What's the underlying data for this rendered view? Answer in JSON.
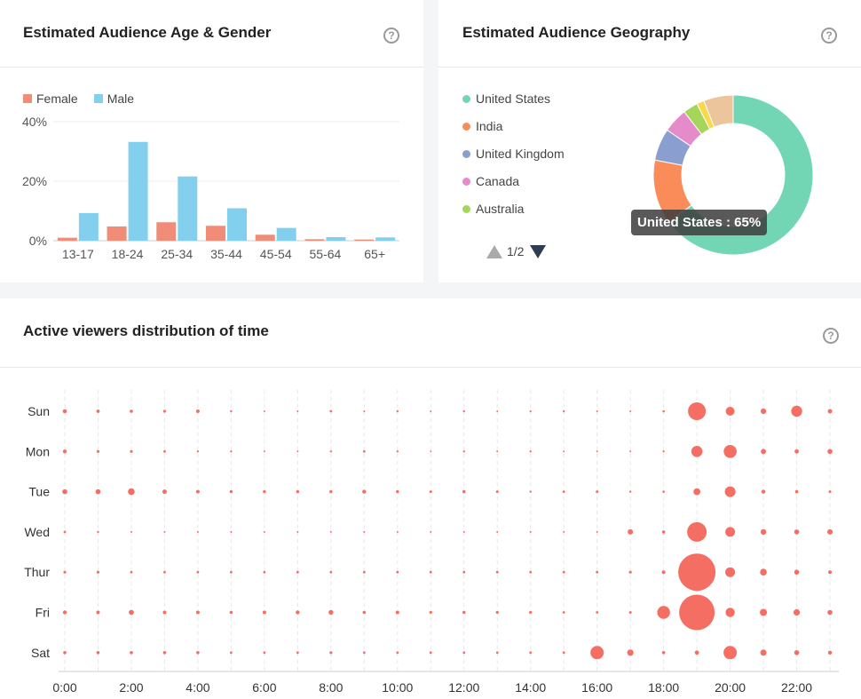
{
  "age_card": {
    "title": "Estimated Audience Age & Gender"
  },
  "geo_card": {
    "title": "Estimated Audience Geography",
    "pager": "1/2",
    "tooltip": "United States : 65%"
  },
  "time_card": {
    "title": "Active viewers distribution of time"
  },
  "icons": {
    "help": "question-circle-icon",
    "pager_prev": "triangle-up-icon",
    "pager_next": "triangle-down-icon"
  },
  "chart_data": [
    {
      "type": "bar",
      "categories": [
        "13-17",
        "18-24",
        "25-34",
        "35-44",
        "45-54",
        "55-64",
        "65+"
      ],
      "series": [
        {
          "name": "Female",
          "color": "#f08c78",
          "values": [
            1.0,
            4.8,
            6.2,
            5.0,
            2.0,
            0.5,
            0.4
          ]
        },
        {
          "name": "Male",
          "color": "#82d0ee",
          "values": [
            9.3,
            33.2,
            21.6,
            10.9,
            4.3,
            1.2,
            1.1
          ]
        }
      ],
      "yticks": [
        "0%",
        "20%",
        "40%"
      ],
      "ylim": [
        0,
        40
      ]
    },
    {
      "type": "pie",
      "donut": true,
      "legend": [
        {
          "label": "United States",
          "color": "#72d5b4"
        },
        {
          "label": "India",
          "color": "#fa8c5a"
        },
        {
          "label": "United Kingdom",
          "color": "#8a9fd0"
        },
        {
          "label": "Canada",
          "color": "#e58bc9"
        },
        {
          "label": "Australia",
          "color": "#a5d55a"
        }
      ],
      "slices": [
        {
          "label": "United States",
          "value": 65,
          "color": "#72d5b4"
        },
        {
          "label": "India",
          "value": 13,
          "color": "#fa8c5a"
        },
        {
          "label": "United Kingdom",
          "value": 6.5,
          "color": "#8a9fd0"
        },
        {
          "label": "Canada",
          "value": 5,
          "color": "#e58bc9"
        },
        {
          "label": "Australia",
          "value": 3,
          "color": "#a5d55a"
        },
        {
          "label": "",
          "value": 1.5,
          "color": "#f8d94a"
        },
        {
          "label": "",
          "value": 6,
          "color": "#ecc59d"
        }
      ]
    },
    {
      "type": "scatter",
      "days": [
        "Sun",
        "Mon",
        "Tue",
        "Wed",
        "Thur",
        "Fri",
        "Sat"
      ],
      "hours": [
        0,
        1,
        2,
        3,
        4,
        5,
        6,
        7,
        8,
        9,
        10,
        11,
        12,
        13,
        14,
        15,
        16,
        17,
        18,
        19,
        20,
        21,
        22,
        23
      ],
      "xticks": [
        "0:00",
        "2:00",
        "4:00",
        "6:00",
        "8:00",
        "10:00",
        "12:00",
        "14:00",
        "16:00",
        "18:00",
        "20:00",
        "22:00"
      ],
      "color": "#f46e63",
      "sizes": [
        [
          2.3,
          1.9,
          1.8,
          1.6,
          2.0,
          1.2,
          1.0,
          1.0,
          1.4,
          1.0,
          1.2,
          1.0,
          1.2,
          1.0,
          1.1,
          1.2,
          1.0,
          1.0,
          1.3,
          10.0,
          5.0,
          3.1,
          6.2,
          2.5
        ],
        [
          2.2,
          1.6,
          1.6,
          1.4,
          1.2,
          1.2,
          1.0,
          1.0,
          1.2,
          1.4,
          1.2,
          1.0,
          1.2,
          1.0,
          1.2,
          1.0,
          1.0,
          1.0,
          1.2,
          6.3,
          7.3,
          2.9,
          2.4,
          2.8
        ],
        [
          2.8,
          2.8,
          3.8,
          2.5,
          2.0,
          1.7,
          1.7,
          1.7,
          1.7,
          2.2,
          1.7,
          1.5,
          1.8,
          1.5,
          1.2,
          1.4,
          1.5,
          1.2,
          1.3,
          3.9,
          6.0,
          2.2,
          1.8,
          1.5
        ],
        [
          1.4,
          1.2,
          1.0,
          1.0,
          1.0,
          1.0,
          1.0,
          1.0,
          1.0,
          1.0,
          1.0,
          1.0,
          1.0,
          1.0,
          1.0,
          1.0,
          1.0,
          3.0,
          1.8,
          11.0,
          5.5,
          3.2,
          2.8,
          3.0
        ],
        [
          1.6,
          1.6,
          1.4,
          1.4,
          1.4,
          1.4,
          1.4,
          1.4,
          1.4,
          1.4,
          1.4,
          1.4,
          1.4,
          1.4,
          1.4,
          1.4,
          1.4,
          1.6,
          2.0,
          21.0,
          5.5,
          3.8,
          2.8,
          2.0
        ],
        [
          2.2,
          2.0,
          2.9,
          2.0,
          2.0,
          1.8,
          2.0,
          2.2,
          2.7,
          1.8,
          2.0,
          1.6,
          1.8,
          1.6,
          1.6,
          1.4,
          1.4,
          1.5,
          7.2,
          20.0,
          5.2,
          4.0,
          3.6,
          2.8
        ],
        [
          1.8,
          1.8,
          1.8,
          1.8,
          1.8,
          1.4,
          1.4,
          1.4,
          1.6,
          1.4,
          1.4,
          1.4,
          1.4,
          1.4,
          1.4,
          1.4,
          7.5,
          3.6,
          1.8,
          2.4,
          7.5,
          3.5,
          2.8,
          2.2
        ]
      ]
    }
  ]
}
